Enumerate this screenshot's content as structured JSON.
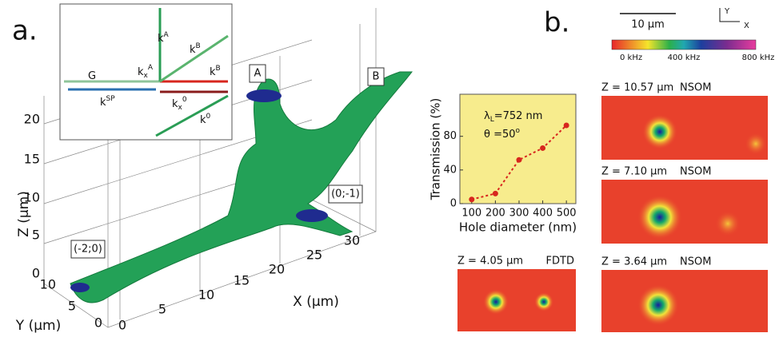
{
  "panel_a": {
    "label": "a.",
    "z_axis_label": "Z (µm)",
    "y_axis_label": "Y (µm)",
    "x_axis_label": "X (µm)",
    "z_ticks": [
      20,
      15,
      10,
      5,
      0
    ],
    "y_ticks": [
      10,
      5,
      0
    ],
    "x_ticks": [
      0,
      5,
      10,
      15,
      20,
      25,
      30
    ],
    "markers": [
      "A",
      "B",
      "(-2;0)",
      "(0;-1)"
    ],
    "inset": [
      {
        "base": "G"
      },
      {
        "base": "k",
        "sup": "SP"
      },
      {
        "base": "k",
        "sup": "A"
      },
      {
        "base": "k",
        "sup": "B"
      },
      {
        "base": "k",
        "sup": "B"
      },
      {
        "base": "k",
        "sup": "A",
        "sub": "x"
      },
      {
        "base": "k",
        "sup": "0",
        "sub": "x"
      },
      {
        "base": "k",
        "sup": "0"
      }
    ]
  },
  "panel_b": {
    "label": "b.",
    "scale_bar": "10 µm",
    "axis_y": "Y",
    "axis_x": "X",
    "colorbar": [
      "0 kHz",
      "400 kHz",
      "800 kHz"
    ],
    "maps": [
      {
        "z": "Z = 10.57 µm",
        "method": "NSOM"
      },
      {
        "z": "Z = 7.10 µm",
        "method": "NSOM"
      },
      {
        "z": "Z = 3.64 µm",
        "method": "NSOM"
      },
      {
        "z": "Z = 4.05 µm",
        "method": "FDTD"
      }
    ]
  },
  "chart_data": {
    "type": "line",
    "x_label": "Hole diameter (nm)",
    "y_label": "Transmission (%)",
    "annotations": [
      {
        "base": "λ",
        "sub": "L",
        "rest": "=752 nm"
      },
      {
        "base": "θ =50",
        "sup": "o"
      }
    ],
    "x": [
      100,
      200,
      300,
      400,
      500
    ],
    "values": [
      5,
      12,
      52,
      66,
      93
    ],
    "color": "#d7261e",
    "xlim": [
      50,
      540
    ],
    "ylim": [
      0,
      130
    ],
    "xticks": [
      100,
      200,
      300,
      400,
      500
    ],
    "yticks": [
      0,
      40,
      80
    ]
  }
}
